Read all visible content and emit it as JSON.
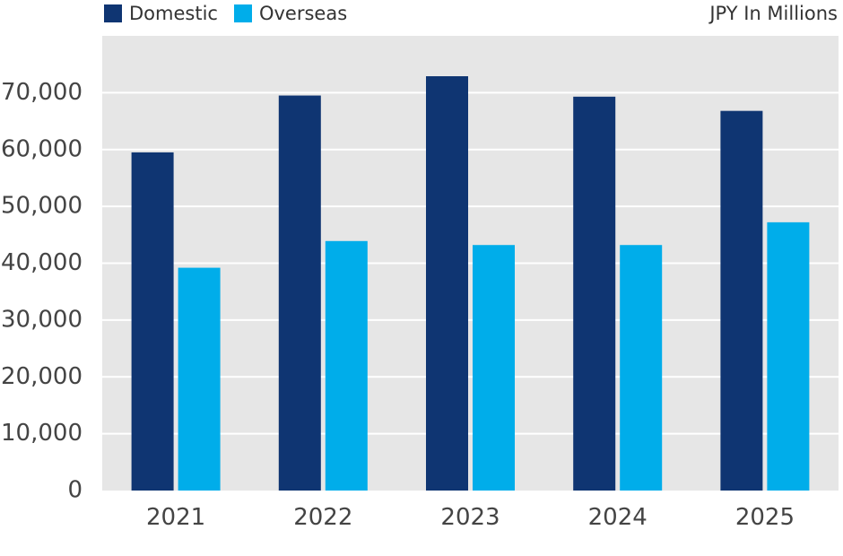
{
  "chart_data": {
    "type": "bar",
    "categories": [
      "2021",
      "2022",
      "2023",
      "2024",
      "2025"
    ],
    "series": [
      {
        "name": "Domestic",
        "values": [
          59500,
          69500,
          72900,
          69300,
          66800
        ],
        "color": "#0f3572"
      },
      {
        "name": "Overseas",
        "values": [
          39200,
          43900,
          43200,
          43200,
          47200
        ],
        "color": "#00adea"
      }
    ],
    "unit_label": "JPY In Millions",
    "yticks": [
      0,
      10000,
      20000,
      30000,
      40000,
      50000,
      60000,
      70000
    ],
    "ytick_labels": [
      "0",
      "10,000",
      "20,000",
      "30,000",
      "40,000",
      "50,000",
      "60,000",
      "70,000"
    ],
    "ylim": [
      0,
      80000
    ],
    "grid": true,
    "legend_position": "top-left",
    "plot_background": "#e6e6e6"
  }
}
